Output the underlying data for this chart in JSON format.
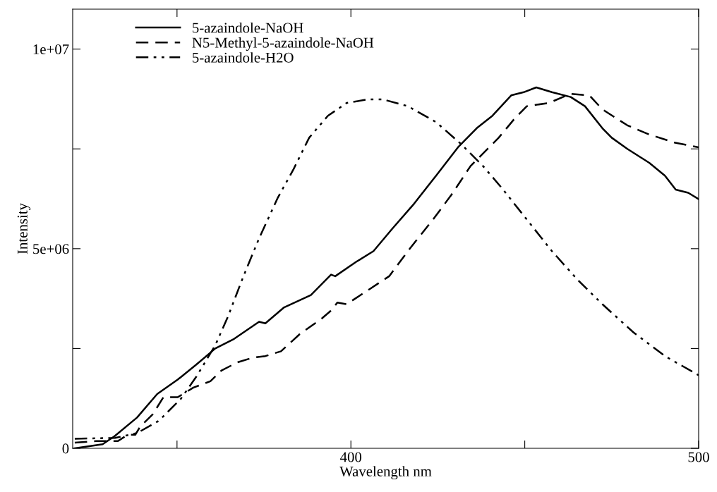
{
  "chart_data": {
    "type": "line",
    "xlabel": "Wavelength nm",
    "ylabel": "Intensity",
    "xlim": [
      320,
      500
    ],
    "ylim": [
      0,
      11000000
    ],
    "xticks": [
      {
        "value": 350,
        "label": null
      },
      400,
      {
        "value": 450,
        "label": null
      },
      500
    ],
    "yticks": [
      {
        "value": 0,
        "label": "0"
      },
      {
        "value": 2500000,
        "label": null
      },
      {
        "value": 5000000,
        "label": "5e+06"
      },
      {
        "value": 7500000,
        "label": null
      },
      {
        "value": 10000000,
        "label": "1e+07"
      }
    ],
    "grid": false,
    "legend": "top left",
    "marker": "none",
    "series": [
      {
        "name": "5-azaindole-NaOH",
        "color": "#000000",
        "line_style": "solid",
        "x": [
          320.6,
          328.6,
          332,
          338.5,
          344.3,
          350.2,
          355.6,
          361,
          366.4,
          373.6,
          375.4,
          380.8,
          388.5,
          394.3,
          395.5,
          401.5,
          406.5,
          411.9,
          418.2,
          424.5,
          430.8,
          436.2,
          440.7,
          446.1,
          449.7,
          453.3,
          457.8,
          463.2,
          467.3,
          472.3,
          475,
          479.5,
          485.8,
          490.3,
          493.4,
          497,
          500
        ],
        "values": [
          0,
          100000,
          300000,
          770000,
          1360000,
          1720000,
          2100000,
          2500000,
          2740000,
          3170000,
          3130000,
          3530000,
          3840000,
          4350000,
          4310000,
          4670000,
          4940000,
          5500000,
          6130000,
          6830000,
          7540000,
          8020000,
          8330000,
          8840000,
          8920000,
          9040000,
          8920000,
          8800000,
          8570000,
          8020000,
          7780000,
          7500000,
          7150000,
          6830000,
          6480000,
          6400000,
          6240000
        ]
      },
      {
        "name": "N5-Methyl-5-azaindole-NaOH",
        "color": "#000000",
        "line_style": "dashed",
        "x": [
          320.6,
          326.8,
          333,
          335.8,
          338,
          339.4,
          343,
          346.1,
          350.2,
          354.7,
          359.6,
          362.8,
          367.3,
          371.8,
          375.4,
          379.9,
          385.3,
          391.6,
          394.3,
          396.1,
          398.8,
          405.6,
          411,
          417.1,
          423.6,
          429,
          434.4,
          442.5,
          447,
          450.6,
          456.9,
          463.2,
          468.6,
          472.3,
          479.5,
          485.8,
          493,
          500
        ],
        "values": [
          140000,
          180000,
          180000,
          340000,
          340000,
          540000,
          850000,
          1280000,
          1280000,
          1520000,
          1680000,
          1950000,
          2150000,
          2270000,
          2310000,
          2430000,
          2860000,
          3250000,
          3450000,
          3650000,
          3610000,
          4000000,
          4310000,
          5020000,
          5730000,
          6360000,
          7070000,
          7780000,
          8250000,
          8570000,
          8650000,
          8880000,
          8840000,
          8490000,
          8090000,
          7860000,
          7660000,
          7540000
        ]
      },
      {
        "name": "5-azaindole-H2O",
        "color": "#000000",
        "line_style": "dashdot",
        "x": [
          320.6,
          332.2,
          338.5,
          344.8,
          351.1,
          355.6,
          361,
          364.6,
          369.1,
          373.6,
          379,
          383.5,
          388,
          393.4,
          398.8,
          404.9,
          409.2,
          416.4,
          424.5,
          431.7,
          438,
          443.4,
          450.6,
          457.8,
          465,
          472.3,
          481.3,
          490.3,
          500
        ],
        "values": [
          240000,
          260000,
          380000,
          690000,
          1240000,
          1800000,
          2580000,
          3290000,
          4310000,
          5260000,
          6280000,
          6990000,
          7780000,
          8330000,
          8650000,
          8740000,
          8740000,
          8570000,
          8170000,
          7620000,
          7070000,
          6520000,
          5730000,
          4940000,
          4240000,
          3610000,
          2900000,
          2310000,
          1830000
        ]
      }
    ]
  }
}
